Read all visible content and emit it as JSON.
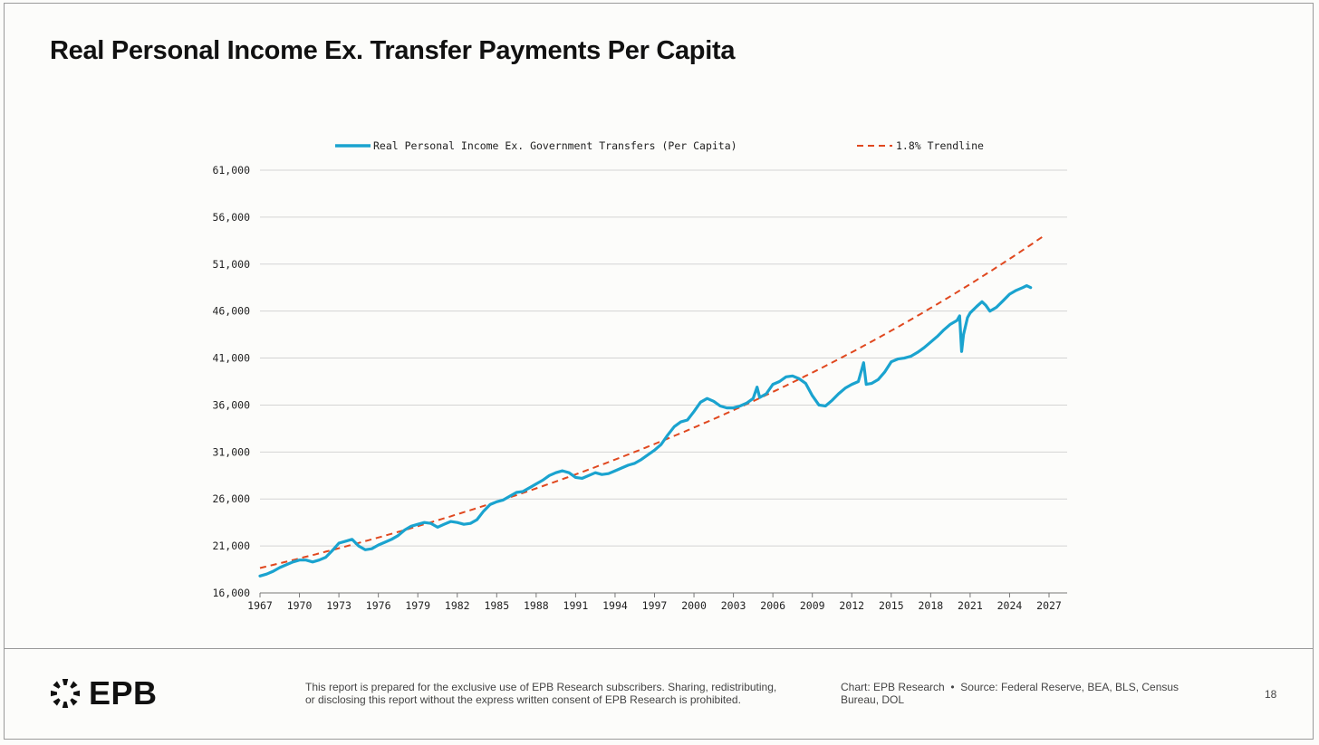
{
  "title": "Real Personal Income Ex. Transfer Payments Per Capita",
  "footer": {
    "logo_text": "EPB",
    "disclaimer_line1": "This report is prepared for the exclusive use of EPB Research subscribers. Sharing, redistributing,",
    "disclaimer_line2": "or disclosing this report without the express written consent of EPB Research is prohibited.",
    "chart_credit": "Chart: EPB Research",
    "source_line1": "Source: Federal Reserve, BEA, BLS, Census",
    "source_line2": "Bureau, DOL",
    "page_number": "18"
  },
  "colors": {
    "series": "#1aa3cf",
    "trend": "#e0481f",
    "grid": "#d4d4d4"
  },
  "chart_data": {
    "type": "line",
    "title": "Real Personal Income Ex. Transfer Payments Per Capita",
    "xlabel": "",
    "ylabel": "",
    "xlim": [
      1967,
      2027
    ],
    "ylim": [
      16000,
      61000
    ],
    "xticks": [
      1967,
      1970,
      1973,
      1976,
      1979,
      1982,
      1985,
      1988,
      1991,
      1994,
      1997,
      2000,
      2003,
      2006,
      2009,
      2012,
      2015,
      2018,
      2021,
      2024,
      2027
    ],
    "yticks": [
      16000,
      21000,
      26000,
      31000,
      36000,
      41000,
      46000,
      51000,
      56000,
      61000
    ],
    "ytick_labels": [
      "16,000",
      "21,000",
      "26,000",
      "31,000",
      "36,000",
      "41,000",
      "46,000",
      "51,000",
      "56,000",
      "61,000"
    ],
    "grid": "horizontal",
    "legend_position": "top",
    "series": [
      {
        "name": "Real Personal Income Ex. Government Transfers (Per Capita)",
        "style": "solid",
        "points": [
          [
            1967.0,
            17800
          ],
          [
            1967.5,
            18000
          ],
          [
            1968.0,
            18300
          ],
          [
            1968.5,
            18700
          ],
          [
            1969.0,
            19000
          ],
          [
            1969.5,
            19300
          ],
          [
            1970.0,
            19500
          ],
          [
            1970.5,
            19500
          ],
          [
            1971.0,
            19300
          ],
          [
            1971.5,
            19500
          ],
          [
            1972.0,
            19800
          ],
          [
            1972.5,
            20500
          ],
          [
            1973.0,
            21300
          ],
          [
            1973.5,
            21500
          ],
          [
            1974.0,
            21700
          ],
          [
            1974.5,
            21000
          ],
          [
            1975.0,
            20600
          ],
          [
            1975.5,
            20700
          ],
          [
            1976.0,
            21100
          ],
          [
            1976.5,
            21400
          ],
          [
            1977.0,
            21700
          ],
          [
            1977.5,
            22100
          ],
          [
            1978.0,
            22700
          ],
          [
            1978.5,
            23100
          ],
          [
            1979.0,
            23300
          ],
          [
            1979.5,
            23500
          ],
          [
            1980.0,
            23400
          ],
          [
            1980.5,
            23000
          ],
          [
            1981.0,
            23300
          ],
          [
            1981.5,
            23600
          ],
          [
            1982.0,
            23500
          ],
          [
            1982.5,
            23300
          ],
          [
            1983.0,
            23400
          ],
          [
            1983.5,
            23800
          ],
          [
            1984.0,
            24700
          ],
          [
            1984.5,
            25400
          ],
          [
            1985.0,
            25700
          ],
          [
            1985.5,
            25900
          ],
          [
            1986.0,
            26300
          ],
          [
            1986.5,
            26700
          ],
          [
            1987.0,
            26800
          ],
          [
            1987.5,
            27200
          ],
          [
            1988.0,
            27600
          ],
          [
            1988.5,
            28000
          ],
          [
            1989.0,
            28500
          ],
          [
            1989.5,
            28800
          ],
          [
            1990.0,
            29000
          ],
          [
            1990.5,
            28800
          ],
          [
            1991.0,
            28300
          ],
          [
            1991.5,
            28200
          ],
          [
            1992.0,
            28500
          ],
          [
            1992.5,
            28800
          ],
          [
            1993.0,
            28600
          ],
          [
            1993.5,
            28700
          ],
          [
            1994.0,
            29000
          ],
          [
            1994.5,
            29300
          ],
          [
            1995.0,
            29600
          ],
          [
            1995.5,
            29800
          ],
          [
            1996.0,
            30200
          ],
          [
            1996.5,
            30700
          ],
          [
            1997.0,
            31200
          ],
          [
            1997.5,
            31800
          ],
          [
            1998.0,
            32800
          ],
          [
            1998.5,
            33700
          ],
          [
            1999.0,
            34200
          ],
          [
            1999.5,
            34400
          ],
          [
            2000.0,
            35300
          ],
          [
            2000.5,
            36300
          ],
          [
            2001.0,
            36700
          ],
          [
            2001.5,
            36400
          ],
          [
            2002.0,
            35900
          ],
          [
            2002.5,
            35700
          ],
          [
            2003.0,
            35700
          ],
          [
            2003.5,
            35900
          ],
          [
            2004.0,
            36200
          ],
          [
            2004.5,
            36700
          ],
          [
            2004.8,
            37900
          ],
          [
            2005.0,
            36800
          ],
          [
            2005.5,
            37200
          ],
          [
            2006.0,
            38200
          ],
          [
            2006.5,
            38500
          ],
          [
            2007.0,
            39000
          ],
          [
            2007.5,
            39100
          ],
          [
            2008.0,
            38800
          ],
          [
            2008.5,
            38300
          ],
          [
            2009.0,
            37000
          ],
          [
            2009.5,
            36000
          ],
          [
            2010.0,
            35900
          ],
          [
            2010.5,
            36500
          ],
          [
            2011.0,
            37200
          ],
          [
            2011.5,
            37800
          ],
          [
            2012.0,
            38200
          ],
          [
            2012.5,
            38500
          ],
          [
            2012.9,
            40500
          ],
          [
            2013.1,
            38200
          ],
          [
            2013.5,
            38300
          ],
          [
            2014.0,
            38700
          ],
          [
            2014.5,
            39500
          ],
          [
            2015.0,
            40600
          ],
          [
            2015.5,
            40900
          ],
          [
            2016.0,
            41000
          ],
          [
            2016.5,
            41200
          ],
          [
            2017.0,
            41600
          ],
          [
            2017.5,
            42100
          ],
          [
            2018.0,
            42700
          ],
          [
            2018.5,
            43300
          ],
          [
            2019.0,
            44000
          ],
          [
            2019.5,
            44600
          ],
          [
            2020.0,
            45000
          ],
          [
            2020.2,
            45500
          ],
          [
            2020.35,
            41700
          ],
          [
            2020.5,
            43500
          ],
          [
            2020.8,
            45300
          ],
          [
            2021.0,
            45800
          ],
          [
            2021.5,
            46500
          ],
          [
            2021.9,
            47000
          ],
          [
            2022.2,
            46600
          ],
          [
            2022.5,
            46000
          ],
          [
            2023.0,
            46400
          ],
          [
            2023.5,
            47100
          ],
          [
            2024.0,
            47800
          ],
          [
            2024.5,
            48200
          ],
          [
            2025.0,
            48500
          ],
          [
            2025.3,
            48700
          ],
          [
            2025.6,
            48500
          ]
        ]
      },
      {
        "name": "1.8% Trendline",
        "style": "dashed",
        "start": [
          1967.0,
          18650
        ],
        "annual_growth": 0.018,
        "x_end": 2026.8
      }
    ]
  }
}
